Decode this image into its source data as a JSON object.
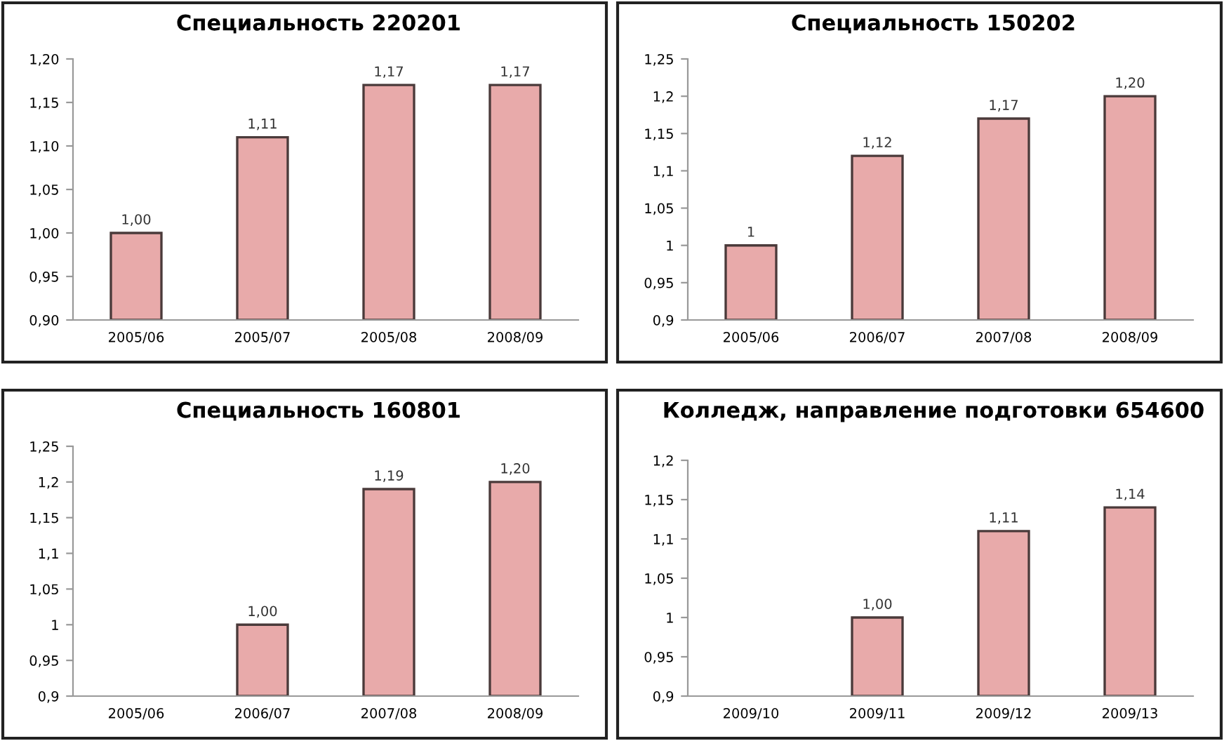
{
  "chart_data": [
    {
      "type": "bar",
      "title": "Специальность 220201",
      "categories": [
        "2005/06",
        "2005/07",
        "2005/08",
        "2008/09"
      ],
      "values": [
        1.0,
        1.11,
        1.17,
        1.17
      ],
      "value_labels": [
        "1,00",
        "1,11",
        "1,17",
        "1,17"
      ],
      "color": "#e8aaaa",
      "ylim": [
        0.9,
        1.2
      ],
      "yticks": [
        {
          "value": 0.9,
          "label": "0,90"
        },
        {
          "value": 0.95,
          "label": "0,95"
        },
        {
          "value": 1.0,
          "label": "1,00"
        },
        {
          "value": 1.05,
          "label": "1,05"
        },
        {
          "value": 1.1,
          "label": "1,10"
        },
        {
          "value": 1.15,
          "label": "1,15"
        },
        {
          "value": 1.2,
          "label": "1,20"
        }
      ],
      "grid": false,
      "legend": false
    },
    {
      "type": "bar",
      "title": "Специальность 150202",
      "categories": [
        "2005/06",
        "2006/07",
        "2007/08",
        "2008/09"
      ],
      "values": [
        1,
        1.12,
        1.17,
        1.2
      ],
      "value_labels": [
        "1",
        "1,12",
        "1,17",
        "1,20"
      ],
      "color": "#e8aaaa",
      "ylim": [
        0.9,
        1.25
      ],
      "yticks": [
        {
          "value": 0.9,
          "label": "0,9"
        },
        {
          "value": 0.95,
          "label": "0,95"
        },
        1,
        {
          "value": 1.05,
          "label": "1,05"
        },
        {
          "value": 1.1,
          "label": "1,1"
        },
        {
          "value": 1.15,
          "label": "1,15"
        },
        {
          "value": 1.2,
          "label": "1,2"
        },
        {
          "value": 1.25,
          "label": "1,25"
        }
      ],
      "grid": false,
      "legend": false
    },
    {
      "type": "bar",
      "title": "Специальность 160801",
      "categories": [
        "2005/06",
        "2006/07",
        "2007/08",
        "2008/09"
      ],
      "values": [
        null,
        1.0,
        1.19,
        1.2
      ],
      "value_labels": [
        null,
        "1,00",
        "1,19",
        "1,20"
      ],
      "color": "#e8aaaa",
      "ylim": [
        0.9,
        1.25
      ],
      "yticks": [
        {
          "value": 0.9,
          "label": "0,9"
        },
        {
          "value": 0.95,
          "label": "0,95"
        },
        1,
        {
          "value": 1.05,
          "label": "1,05"
        },
        {
          "value": 1.1,
          "label": "1,1"
        },
        {
          "value": 1.15,
          "label": "1,15"
        },
        {
          "value": 1.2,
          "label": "1,2"
        },
        {
          "value": 1.25,
          "label": "1,25"
        }
      ],
      "grid": false,
      "legend": false
    },
    {
      "type": "bar",
      "title": "Колледж, направление подготовки 654600",
      "categories": [
        "2009/10",
        "2009/11",
        "2009/12",
        "2009/13"
      ],
      "values": [
        null,
        1.0,
        1.11,
        1.14
      ],
      "value_labels": [
        null,
        "1,00",
        "1,11",
        "1,14"
      ],
      "color": "#e8aaaa",
      "ylim": [
        0.9,
        1.2
      ],
      "yticks": [
        {
          "value": 0.9,
          "label": "0,9"
        },
        {
          "value": 0.95,
          "label": "0,95"
        },
        1,
        {
          "value": 1.05,
          "label": "1,05"
        },
        {
          "value": 1.1,
          "label": "1,1"
        },
        {
          "value": 1.15,
          "label": "1,15"
        },
        {
          "value": 1.2,
          "label": "1,2"
        }
      ],
      "grid": false,
      "legend": false
    }
  ]
}
